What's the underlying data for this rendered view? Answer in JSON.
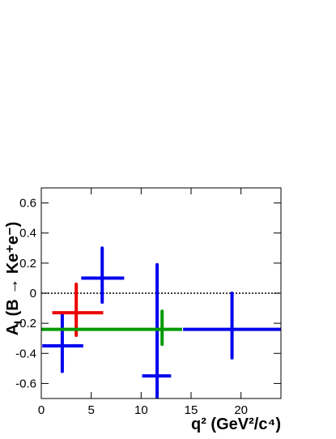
{
  "chart_data": {
    "type": "errorbar",
    "xlabel": "q² (GeV²/c⁴)",
    "ylabel": {
      "main": "A",
      "sub": "I",
      "rest": " (B → Ke⁺e⁻)"
    },
    "xlim": [
      0,
      24
    ],
    "xticks": [
      0,
      5,
      10,
      15,
      20
    ],
    "ylim": [
      -0.7,
      0.7
    ],
    "yticks": [
      -0.6,
      -0.4,
      -0.2,
      0,
      0.2,
      0.4,
      0.6
    ],
    "reference_line": 0,
    "series": [
      {
        "color": "#0000ee",
        "x": [
          2.1,
          6.1,
          11.6,
          19.1
        ],
        "xmin": [
          0.1,
          4.0,
          10.1,
          14.2
        ],
        "xmax": [
          4.2,
          8.3,
          13.0,
          24
        ],
        "y": [
          -0.35,
          0.1,
          -0.55,
          -0.24
        ],
        "ymin": [
          -0.52,
          -0.06,
          -0.75,
          -0.43
        ],
        "ymax": [
          -0.14,
          0.3,
          0.19,
          0.0
        ]
      },
      {
        "color": "#ee0000",
        "x": [
          3.5
        ],
        "xmin": [
          1.1
        ],
        "xmax": [
          6.2
        ],
        "y": [
          -0.13
        ],
        "ymin": [
          -0.28
        ],
        "ymax": [
          0.06
        ]
      },
      {
        "color": "#009900",
        "x": [
          12.1
        ],
        "xmin": [
          0
        ],
        "xmax": [
          14.1
        ],
        "y": [
          -0.24
        ],
        "ymin": [
          -0.34
        ],
        "ymax": [
          -0.12
        ]
      }
    ]
  }
}
